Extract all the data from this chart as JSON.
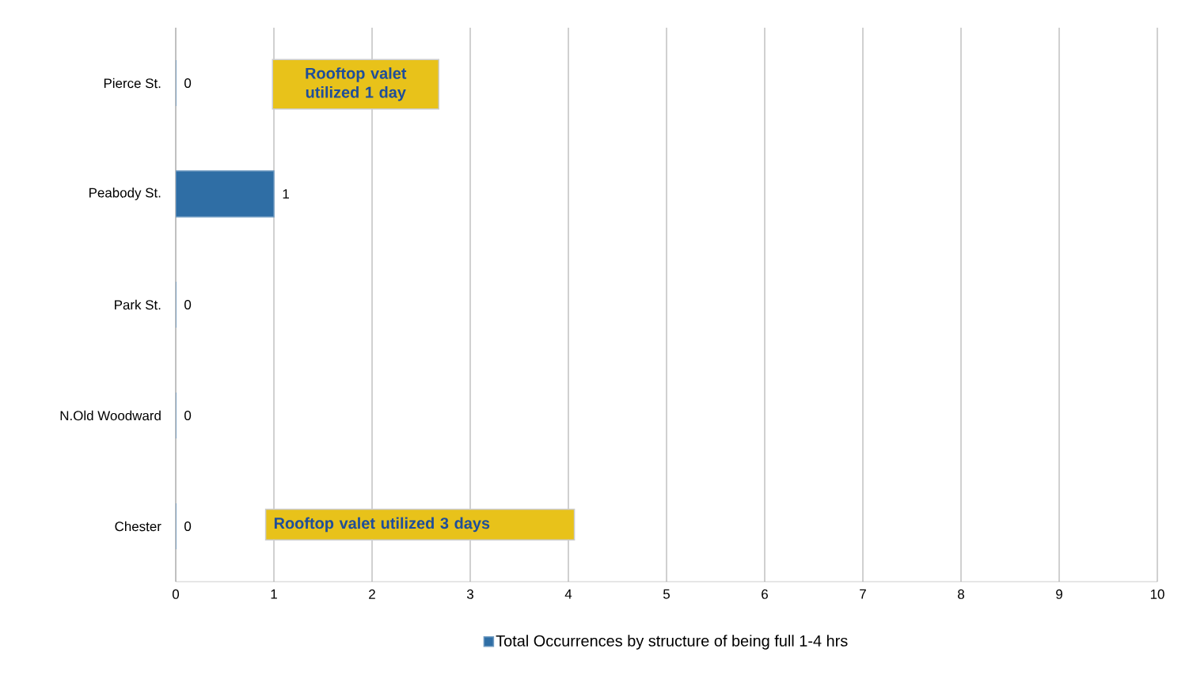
{
  "chart_data": {
    "type": "bar",
    "orientation": "horizontal",
    "categories": [
      "Pierce St.",
      "Peabody St.",
      "Park St.",
      "N.Old Woodward",
      "Chester"
    ],
    "series": [
      {
        "name": "Total Occurrences by structure of being full 1-4 hrs",
        "color": "#2f6ea5",
        "values": [
          0,
          1,
          0,
          0,
          0
        ]
      }
    ],
    "xlim": [
      0,
      10
    ],
    "xticks": [
      0,
      1,
      2,
      3,
      4,
      5,
      6,
      7,
      8,
      9,
      10
    ],
    "grid": "x",
    "legend": "bottom",
    "data_labels": true,
    "annotations": [
      "Rooftop valet utilized 1 day",
      "Rooftop valet utilized 3 days"
    ]
  }
}
